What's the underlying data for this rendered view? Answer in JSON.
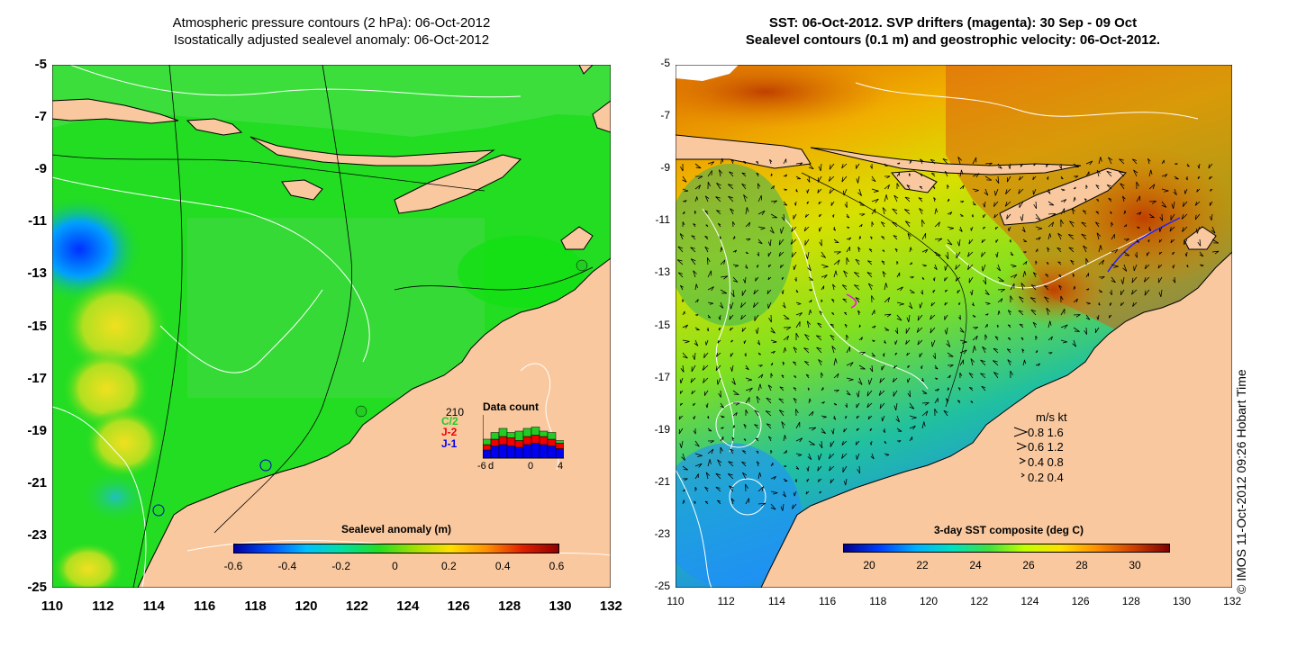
{
  "left_panel": {
    "title_line1": "Atmospheric pressure contours (2 hPa): 06-Oct-2012",
    "title_line2": "Isostatically adjusted sealevel anomaly: 06-Oct-2012",
    "y_ticks": [
      "-5",
      "-7",
      "-9",
      "-11",
      "-13",
      "-15",
      "-17",
      "-19",
      "-21",
      "-23",
      "-25"
    ],
    "x_ticks": [
      "110",
      "112",
      "114",
      "116",
      "118",
      "120",
      "122",
      "124",
      "126",
      "128",
      "130",
      "132"
    ],
    "colorbar": {
      "title": "Sealevel anomaly (m)",
      "ticks": [
        "-0.6",
        "-0.4",
        "-0.2",
        "0",
        "0.2",
        "0.4",
        "0.6"
      ]
    },
    "data_count": {
      "title": "Data count",
      "max_label": "210",
      "series": [
        {
          "label": "C/2",
          "color": "#22cc22"
        },
        {
          "label": "J-2",
          "color": "#ee0000"
        },
        {
          "label": "J-1",
          "color": "#0000ee"
        }
      ],
      "x_ticks": [
        "-6",
        "d",
        "0",
        "4"
      ],
      "bars_j1": [
        0.3,
        0.45,
        0.5,
        0.45,
        0.4,
        0.5,
        0.55,
        0.5,
        0.45,
        0.35
      ],
      "bars_j2": [
        0.2,
        0.25,
        0.3,
        0.3,
        0.25,
        0.3,
        0.3,
        0.3,
        0.25,
        0.2
      ],
      "bars_c2": [
        0.2,
        0.25,
        0.3,
        0.2,
        0.35,
        0.3,
        0.3,
        0.2,
        0.25,
        0.1
      ]
    }
  },
  "right_panel": {
    "title_line1": "SST: 06-Oct-2012. SVP drifters (magenta): 30 Sep - 09 Oct",
    "title_line2": "Sealevel contours (0.1 m) and geostrophic velocity: 06-Oct-2012.",
    "y_ticks": [
      "-5",
      "-7",
      "-9",
      "-11",
      "-13",
      "-15",
      "-17",
      "-19",
      "-21",
      "-23",
      "-25"
    ],
    "x_ticks": [
      "110",
      "112",
      "114",
      "116",
      "118",
      "120",
      "122",
      "124",
      "126",
      "128",
      "130",
      "132"
    ],
    "colorbar": {
      "title": "3-day SST composite (deg C)",
      "ticks": [
        "20",
        "22",
        "24",
        "26",
        "28",
        "30"
      ]
    },
    "velocity_legend": {
      "header": "m/s  kt",
      "rows": [
        "0.8  1.6",
        "0.6  1.2",
        "0.4  0.8",
        "0.2  0.4"
      ]
    }
  },
  "credit": "© IMOS 11-Oct-2012 09:26 Hobart Time",
  "colors": {
    "land": "#f9c89f",
    "sla_ramp": [
      "#0000a0",
      "#0050ff",
      "#00c0ff",
      "#00e0a0",
      "#22dd22",
      "#a0e000",
      "#ffe000",
      "#ff9000",
      "#e02000",
      "#900000"
    ],
    "sst_ramp": [
      "#000090",
      "#0040ff",
      "#00b0ff",
      "#00e0c0",
      "#40e040",
      "#c0ff00",
      "#ffe000",
      "#ff9000",
      "#d04000",
      "#800000"
    ]
  }
}
